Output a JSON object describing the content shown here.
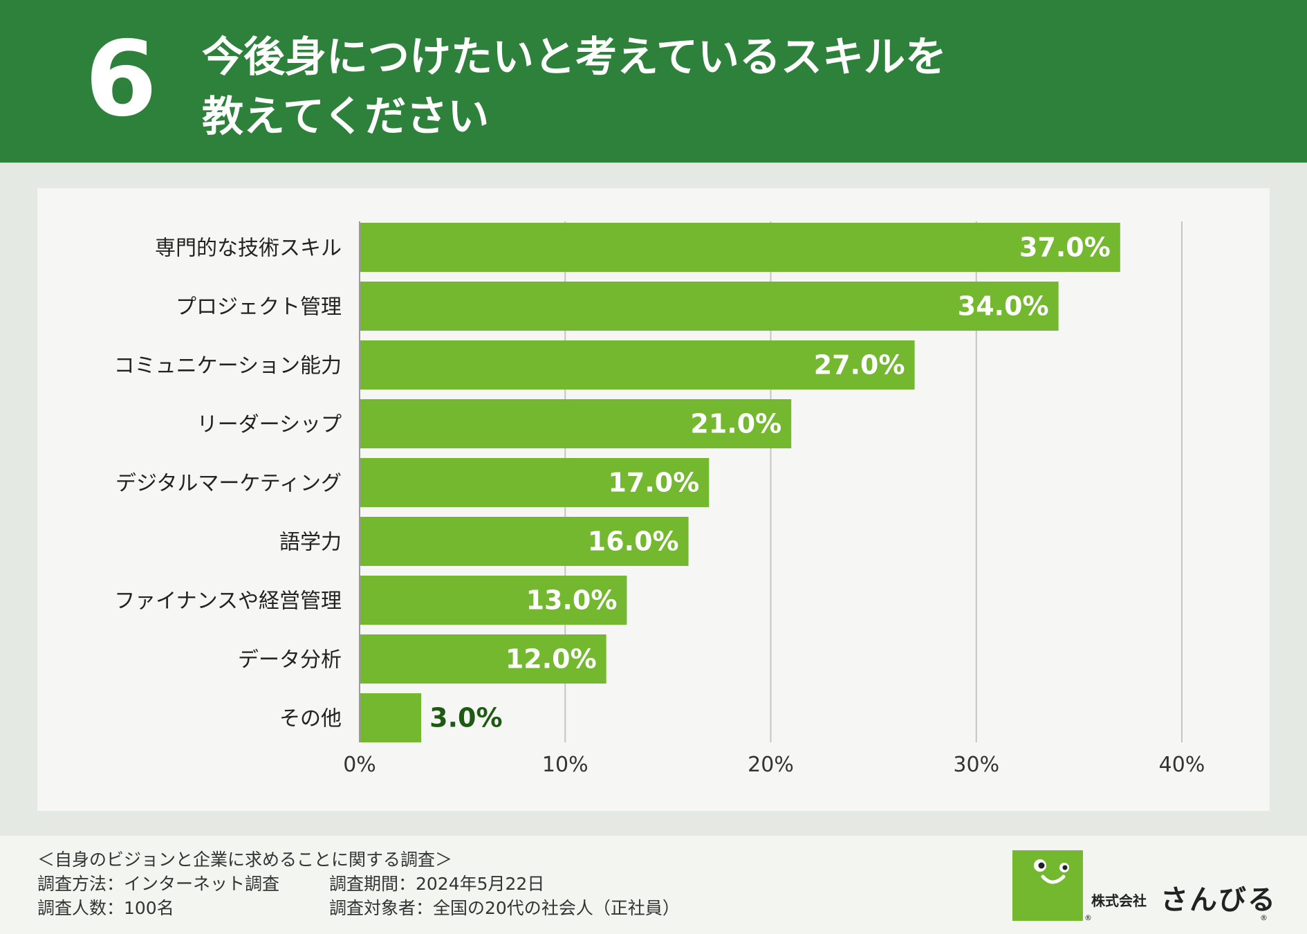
{
  "header": {
    "number": "6",
    "title_line1": "今後身につけたいと考えているスキルを",
    "title_line2": "教えてください"
  },
  "chart_data": {
    "type": "bar",
    "orientation": "horizontal",
    "categories": [
      "専門的な技術スキル",
      "プロジェクト管理",
      "コミュニケーション能力",
      "リーダーシップ",
      "デジタルマーケティング",
      "語学力",
      "ファイナンスや経営管理",
      "データ分析",
      "その他"
    ],
    "values": [
      37.0,
      34.0,
      27.0,
      21.0,
      17.0,
      16.0,
      13.0,
      12.0,
      3.0
    ],
    "value_labels": [
      "37.0%",
      "34.0%",
      "27.0%",
      "21.0%",
      "17.0%",
      "16.0%",
      "13.0%",
      "12.0%",
      "3.0%"
    ],
    "xlim": [
      0,
      40
    ],
    "xticks": [
      0,
      10,
      20,
      30,
      40
    ],
    "xtick_labels": [
      "0%",
      "10%",
      "20%",
      "30%",
      "40%"
    ],
    "grid": true,
    "title": "",
    "xlabel": "",
    "ylabel": "",
    "bar_color": "#73b82f",
    "inside_label_color": "#ffffff",
    "outside_label_color": "#1f5a14"
  },
  "footer": {
    "survey_title": "＜自身のビジョンと企業に求めることに関する調査＞",
    "method": "調査方法：インターネット調査",
    "period": "調査期間：2024年5月22日",
    "sample": "調査人数：100名",
    "target": "調査対象者：全国の20代の社会人（正社員）",
    "company": "株式会社",
    "brand": "さんびる",
    "reg_mark": "®"
  },
  "colors": {
    "header_bg": "#2e813b",
    "panel_bg": "#f6f7f4",
    "logo_green": "#73b82f"
  }
}
